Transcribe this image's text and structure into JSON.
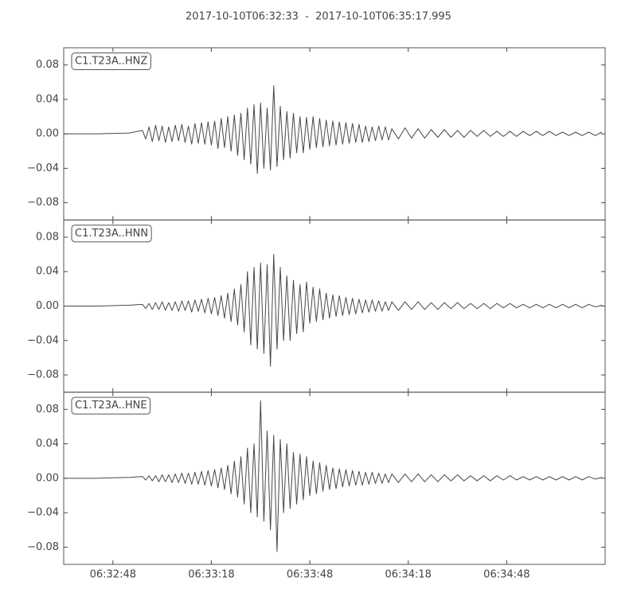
{
  "chart_data": {
    "type": "line",
    "title": "2017-10-10T06:32:33  -  2017-10-10T06:35:17.995",
    "x": [
      23553,
      23563,
      23573,
      23577,
      23578,
      23579,
      23580,
      23581,
      23582,
      23583,
      23584,
      23585,
      23586,
      23587,
      23588,
      23589,
      23590,
      23591,
      23592,
      23593,
      23594,
      23595,
      23596,
      23597,
      23598,
      23599,
      23600,
      23601,
      23602,
      23603,
      23604,
      23605,
      23606,
      23607,
      23608,
      23609,
      23610,
      23611,
      23612,
      23613,
      23614,
      23615,
      23616,
      23617,
      23618,
      23619,
      23620,
      23621,
      23622,
      23623,
      23624,
      23625,
      23626,
      23627,
      23628,
      23629,
      23630,
      23631,
      23632,
      23633,
      23634,
      23635,
      23636,
      23637,
      23638,
      23639,
      23640,
      23641,
      23642,
      23643,
      23644,
      23645,
      23646,
      23647,
      23648,
      23649,
      23650,
      23651,
      23652,
      23653,
      23655,
      23657,
      23659,
      23661,
      23663,
      23665,
      23667,
      23669,
      23671,
      23673,
      23675,
      23677,
      23679,
      23681,
      23683,
      23685,
      23687,
      23689,
      23691,
      23693,
      23695,
      23697,
      23699,
      23701,
      23703,
      23705,
      23707,
      23709,
      23711,
      23713,
      23715,
      23717
    ],
    "xlim": [
      23553,
      23717.995
    ],
    "xticks": [
      {
        "value": 23568,
        "label": "06:32:48"
      },
      {
        "value": 23598,
        "label": "06:33:18"
      },
      {
        "value": 23628,
        "label": "06:33:48"
      },
      {
        "value": 23658,
        "label": "06:34:18"
      },
      {
        "value": 23688,
        "label": "06:34:48"
      }
    ],
    "ylim": [
      -0.1,
      0.1
    ],
    "yticks": [
      {
        "value": -0.08,
        "label": "−0.08"
      },
      {
        "value": -0.04,
        "label": "−0.04"
      },
      {
        "value": 0,
        "label": "0.00"
      },
      0.04,
      0.08
    ],
    "series": [
      {
        "name": "C1.T23A..HNZ",
        "color": "#474747",
        "values": [
          0,
          0,
          0.001,
          0.004,
          -0.006,
          0.008,
          -0.009,
          0.01,
          -0.008,
          0.009,
          -0.01,
          0.008,
          -0.009,
          0.01,
          -0.008,
          0.011,
          -0.01,
          0.009,
          -0.012,
          0.012,
          -0.011,
          0.013,
          -0.012,
          0.014,
          -0.013,
          0.015,
          -0.017,
          0.018,
          -0.016,
          0.02,
          -0.02,
          0.022,
          -0.025,
          0.024,
          -0.03,
          0.03,
          -0.035,
          0.034,
          -0.046,
          0.036,
          -0.04,
          0.03,
          -0.042,
          0.056,
          -0.038,
          0.032,
          -0.03,
          0.026,
          -0.028,
          0.024,
          -0.022,
          0.02,
          -0.022,
          0.019,
          -0.018,
          0.02,
          -0.016,
          0.018,
          -0.015,
          0.016,
          -0.014,
          0.015,
          -0.013,
          0.014,
          -0.012,
          0.013,
          -0.011,
          0.012,
          -0.01,
          0.011,
          -0.01,
          0.009,
          -0.009,
          0.008,
          -0.008,
          0.009,
          -0.007,
          0.008,
          -0.007,
          0.006,
          -0.006,
          0.007,
          -0.005,
          0.006,
          -0.005,
          0.005,
          -0.004,
          0.005,
          -0.004,
          0.004,
          -0.004,
          0.004,
          -0.003,
          0.004,
          -0.003,
          0.003,
          -0.003,
          0.003,
          -0.003,
          0.003,
          -0.002,
          0.003,
          -0.002,
          0.003,
          -0.002,
          0.002,
          -0.002,
          0.002,
          -0.002,
          0.002,
          -0.002,
          0.002
        ]
      },
      {
        "name": "C1.T23A..HNN",
        "color": "#474747",
        "values": [
          0,
          0,
          0.001,
          0.002,
          -0.003,
          0.003,
          -0.004,
          0.004,
          -0.004,
          0.005,
          -0.005,
          0.004,
          -0.005,
          0.005,
          -0.006,
          0.006,
          -0.005,
          0.006,
          -0.007,
          0.007,
          -0.006,
          0.008,
          -0.008,
          0.009,
          -0.009,
          0.01,
          -0.011,
          0.012,
          -0.014,
          0.015,
          -0.018,
          0.02,
          -0.022,
          0.025,
          -0.03,
          0.04,
          -0.045,
          0.045,
          -0.05,
          0.05,
          -0.055,
          0.048,
          -0.07,
          0.06,
          -0.05,
          0.045,
          -0.04,
          0.035,
          -0.04,
          0.03,
          -0.032,
          0.025,
          -0.03,
          0.028,
          -0.02,
          0.022,
          -0.018,
          0.02,
          -0.016,
          0.015,
          -0.014,
          0.013,
          -0.012,
          0.012,
          -0.011,
          0.01,
          -0.01,
          0.009,
          -0.009,
          0.008,
          -0.008,
          0.007,
          -0.007,
          0.007,
          -0.006,
          0.006,
          -0.006,
          0.005,
          -0.005,
          0.005,
          -0.005,
          0.005,
          -0.004,
          0.005,
          -0.004,
          0.004,
          -0.004,
          0.004,
          -0.003,
          0.004,
          -0.003,
          0.003,
          -0.003,
          0.003,
          -0.003,
          0.003,
          -0.002,
          0.003,
          -0.002,
          0.002,
          -0.002,
          0.002,
          -0.002,
          0.002,
          -0.002,
          0.002,
          -0.002,
          0.002,
          -0.002,
          0.002,
          -0.001,
          0.001
        ]
      },
      {
        "name": "C1.T23A..HNE",
        "color": "#474747",
        "values": [
          0,
          0,
          0.001,
          0.002,
          -0.002,
          0.003,
          -0.003,
          0.003,
          -0.004,
          0.004,
          -0.004,
          0.004,
          -0.005,
          0.005,
          -0.005,
          0.006,
          -0.006,
          0.006,
          -0.007,
          0.007,
          -0.007,
          0.008,
          -0.008,
          0.009,
          -0.009,
          0.01,
          -0.011,
          0.012,
          -0.013,
          0.015,
          -0.018,
          0.02,
          -0.022,
          0.025,
          -0.03,
          0.035,
          -0.04,
          0.04,
          -0.045,
          0.09,
          -0.05,
          0.055,
          -0.06,
          0.05,
          -0.085,
          0.045,
          -0.04,
          0.04,
          -0.035,
          0.03,
          -0.03,
          0.028,
          -0.025,
          0.025,
          -0.02,
          0.02,
          -0.018,
          0.018,
          -0.015,
          0.015,
          -0.013,
          0.012,
          -0.012,
          0.011,
          -0.01,
          0.01,
          -0.009,
          0.009,
          -0.008,
          0.008,
          -0.008,
          0.007,
          -0.007,
          0.007,
          -0.006,
          0.006,
          -0.006,
          0.005,
          -0.005,
          0.005,
          -0.005,
          0.005,
          -0.004,
          0.005,
          -0.004,
          0.004,
          -0.004,
          0.004,
          -0.003,
          0.004,
          -0.003,
          0.003,
          -0.003,
          0.003,
          -0.003,
          0.003,
          -0.002,
          0.003,
          -0.002,
          0.002,
          -0.002,
          0.002,
          -0.002,
          0.002,
          -0.002,
          0.002,
          -0.002,
          0.002,
          -0.002,
          0.002,
          -0.001,
          0.001
        ]
      }
    ]
  }
}
